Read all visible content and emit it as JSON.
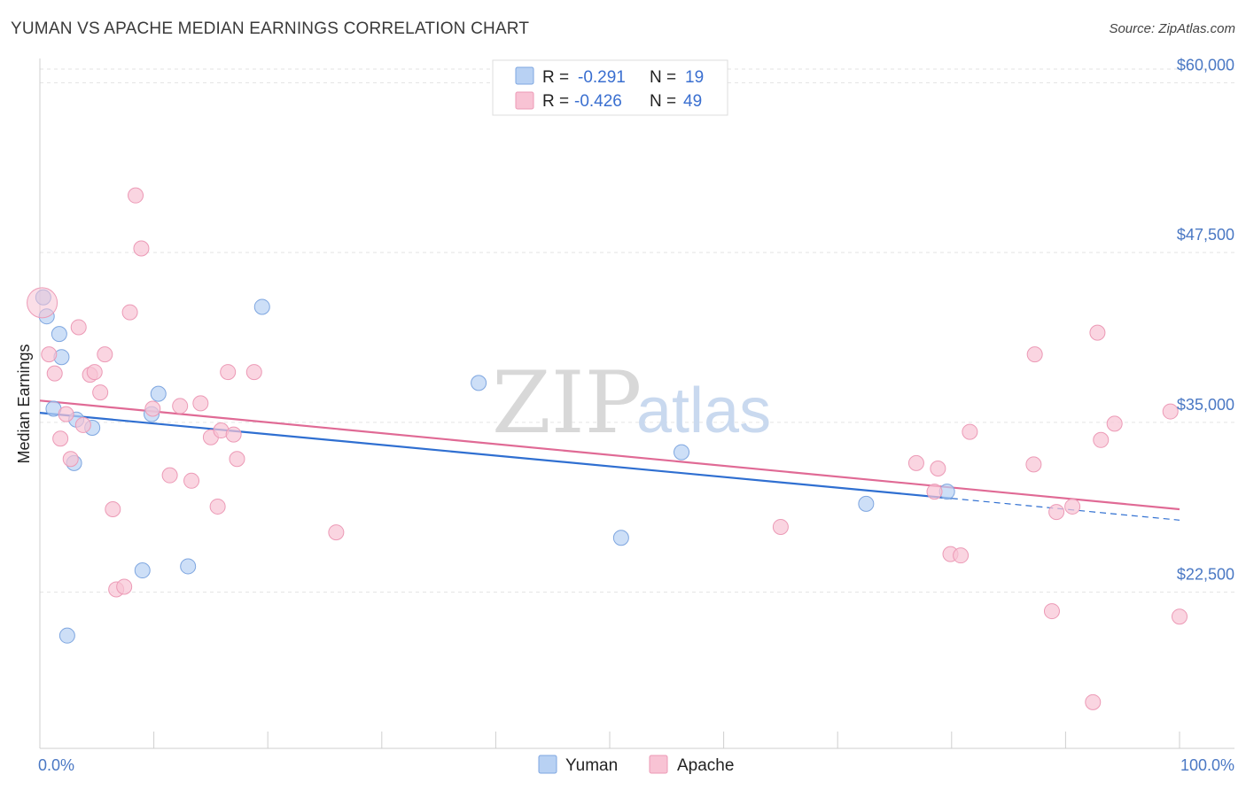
{
  "title": "YUMAN VS APACHE MEDIAN EARNINGS CORRELATION CHART",
  "source": "Source: ZipAtlas.com",
  "watermark": {
    "zip": "ZIP",
    "atlas": "atlas"
  },
  "colors": {
    "yuman_fill": "#b8d1f3",
    "yuman_stroke": "#7ea6e0",
    "yuman_line": "#2f6fd1",
    "apache_fill": "#f8c3d4",
    "apache_stroke": "#ec9ab6",
    "apache_line": "#e06a95",
    "axis_label": "#4a78c4",
    "grid": "#e3e3e3"
  },
  "legend": {
    "rows": [
      {
        "series": "Yuman",
        "r_label": "R =",
        "r_value": "-0.291",
        "n_label": "N =",
        "n_value": "19"
      },
      {
        "series": "Apache",
        "r_label": "R =",
        "r_value": "-0.426",
        "n_label": "N =",
        "n_value": "49"
      }
    ]
  },
  "chart_data": {
    "type": "scatter",
    "title": "YUMAN VS APACHE MEDIAN EARNINGS CORRELATION CHART",
    "xlabel": "",
    "ylabel": "Median Earnings",
    "xlim": [
      0,
      100
    ],
    "ylim": [
      11000,
      61000
    ],
    "x_tick_labels": [
      "0.0%",
      "100.0%"
    ],
    "y_ticks": [
      {
        "value": 22500,
        "label": "$22,500"
      },
      {
        "value": 35000,
        "label": "$35,000"
      },
      {
        "value": 47500,
        "label": "$47,500"
      },
      {
        "value": 60000,
        "label": "$60,000"
      }
    ],
    "grid": true,
    "legend_position": "top-center",
    "series": [
      {
        "name": "Yuman",
        "r": -0.291,
        "n": 19,
        "trend": {
          "x0": 0,
          "y0": 35700,
          "x1": 80,
          "y1": 29400,
          "dash_to_x": 100,
          "dash_to_y": 27800
        },
        "points": [
          {
            "x": 0.3,
            "y": 44200
          },
          {
            "x": 0.6,
            "y": 42800
          },
          {
            "x": 1.2,
            "y": 36000
          },
          {
            "x": 1.7,
            "y": 41500
          },
          {
            "x": 1.9,
            "y": 39800
          },
          {
            "x": 2.4,
            "y": 19300
          },
          {
            "x": 3.0,
            "y": 32000
          },
          {
            "x": 3.2,
            "y": 35200
          },
          {
            "x": 4.6,
            "y": 34600
          },
          {
            "x": 9.0,
            "y": 24100
          },
          {
            "x": 9.8,
            "y": 35600
          },
          {
            "x": 10.4,
            "y": 37100
          },
          {
            "x": 13.0,
            "y": 24400
          },
          {
            "x": 19.5,
            "y": 43500
          },
          {
            "x": 38.5,
            "y": 37900
          },
          {
            "x": 51.0,
            "y": 26500
          },
          {
            "x": 56.3,
            "y": 32800
          },
          {
            "x": 72.5,
            "y": 29000
          },
          {
            "x": 79.6,
            "y": 29900
          }
        ]
      },
      {
        "name": "Apache",
        "r": -0.426,
        "n": 49,
        "trend": {
          "x0": 0,
          "y0": 36600,
          "x1": 100,
          "y1": 28600
        },
        "points": [
          {
            "x": 0.2,
            "y": 43800,
            "big": true
          },
          {
            "x": 0.8,
            "y": 40000
          },
          {
            "x": 1.3,
            "y": 38600
          },
          {
            "x": 1.8,
            "y": 33800
          },
          {
            "x": 2.3,
            "y": 35600
          },
          {
            "x": 2.7,
            "y": 32300
          },
          {
            "x": 3.4,
            "y": 42000
          },
          {
            "x": 3.8,
            "y": 34800
          },
          {
            "x": 4.4,
            "y": 38500
          },
          {
            "x": 4.8,
            "y": 38700
          },
          {
            "x": 5.3,
            "y": 37200
          },
          {
            "x": 5.7,
            "y": 40000
          },
          {
            "x": 6.4,
            "y": 28600
          },
          {
            "x": 6.7,
            "y": 22700
          },
          {
            "x": 7.4,
            "y": 22900
          },
          {
            "x": 7.9,
            "y": 43100
          },
          {
            "x": 8.4,
            "y": 51700
          },
          {
            "x": 8.9,
            "y": 47800
          },
          {
            "x": 9.9,
            "y": 36000
          },
          {
            "x": 11.4,
            "y": 31100
          },
          {
            "x": 12.3,
            "y": 36200
          },
          {
            "x": 13.3,
            "y": 30700
          },
          {
            "x": 14.1,
            "y": 36400
          },
          {
            "x": 15.0,
            "y": 33900
          },
          {
            "x": 15.6,
            "y": 28800
          },
          {
            "x": 15.9,
            "y": 34400
          },
          {
            "x": 16.5,
            "y": 38700
          },
          {
            "x": 17.0,
            "y": 34100
          },
          {
            "x": 17.3,
            "y": 32300
          },
          {
            "x": 18.8,
            "y": 38700
          },
          {
            "x": 26.0,
            "y": 26900
          },
          {
            "x": 65.0,
            "y": 27300
          },
          {
            "x": 76.9,
            "y": 32000
          },
          {
            "x": 78.5,
            "y": 29900
          },
          {
            "x": 78.8,
            "y": 31600
          },
          {
            "x": 79.9,
            "y": 25300
          },
          {
            "x": 80.8,
            "y": 25200
          },
          {
            "x": 81.6,
            "y": 34300
          },
          {
            "x": 87.2,
            "y": 31900
          },
          {
            "x": 87.3,
            "y": 40000
          },
          {
            "x": 88.8,
            "y": 21100
          },
          {
            "x": 89.2,
            "y": 28400
          },
          {
            "x": 90.6,
            "y": 28800
          },
          {
            "x": 92.4,
            "y": 14400
          },
          {
            "x": 92.8,
            "y": 41600
          },
          {
            "x": 93.1,
            "y": 33700
          },
          {
            "x": 94.3,
            "y": 34900
          },
          {
            "x": 99.2,
            "y": 35800
          },
          {
            "x": 100.0,
            "y": 20700
          }
        ]
      }
    ]
  },
  "bottom_legend": [
    {
      "series": "Yuman",
      "label": "Yuman"
    },
    {
      "series": "Apache",
      "label": "Apache"
    }
  ]
}
